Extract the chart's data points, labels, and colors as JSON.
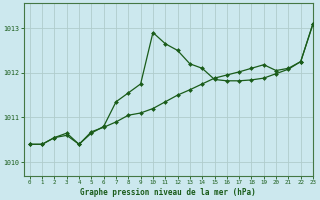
{
  "title": "Graphe pression niveau de la mer (hPa)",
  "background_color": "#cce8ee",
  "grid_color": "#b0cccc",
  "line_color": "#1a5c1a",
  "marker_color": "#1a5c1a",
  "xlim": [
    -0.5,
    23
  ],
  "ylim": [
    1009.7,
    1013.55
  ],
  "yticks": [
    1010,
    1011,
    1012,
    1013
  ],
  "xticks": [
    0,
    1,
    2,
    3,
    4,
    5,
    6,
    7,
    8,
    9,
    10,
    11,
    12,
    13,
    14,
    15,
    16,
    17,
    18,
    19,
    20,
    21,
    22,
    23
  ],
  "series1_x": [
    0,
    1,
    2,
    3,
    4,
    5,
    6,
    7,
    8,
    9,
    10,
    11,
    12,
    13,
    14,
    15,
    16,
    17,
    18,
    19,
    20,
    21,
    22,
    23
  ],
  "series1_y": [
    1010.4,
    1010.4,
    1010.55,
    1010.6,
    1010.4,
    1010.65,
    1010.8,
    1011.35,
    1011.55,
    1011.75,
    1012.9,
    1012.65,
    1012.5,
    1012.2,
    1012.1,
    1011.85,
    1011.82,
    1011.82,
    1011.84,
    1011.88,
    1011.98,
    1012.08,
    1012.25,
    1013.1
  ],
  "series2_x": [
    0,
    1,
    2,
    3,
    4,
    5,
    6,
    7,
    8,
    9,
    10,
    11,
    12,
    13,
    14,
    15,
    16,
    17,
    18,
    19,
    20,
    21,
    22,
    23
  ],
  "series2_y": [
    1010.4,
    1010.4,
    1010.55,
    1010.65,
    1010.4,
    1010.68,
    1010.78,
    1010.9,
    1011.05,
    1011.1,
    1011.2,
    1011.35,
    1011.5,
    1011.62,
    1011.75,
    1011.88,
    1011.95,
    1012.02,
    1012.1,
    1012.18,
    1012.05,
    1012.1,
    1012.25,
    1013.1
  ]
}
